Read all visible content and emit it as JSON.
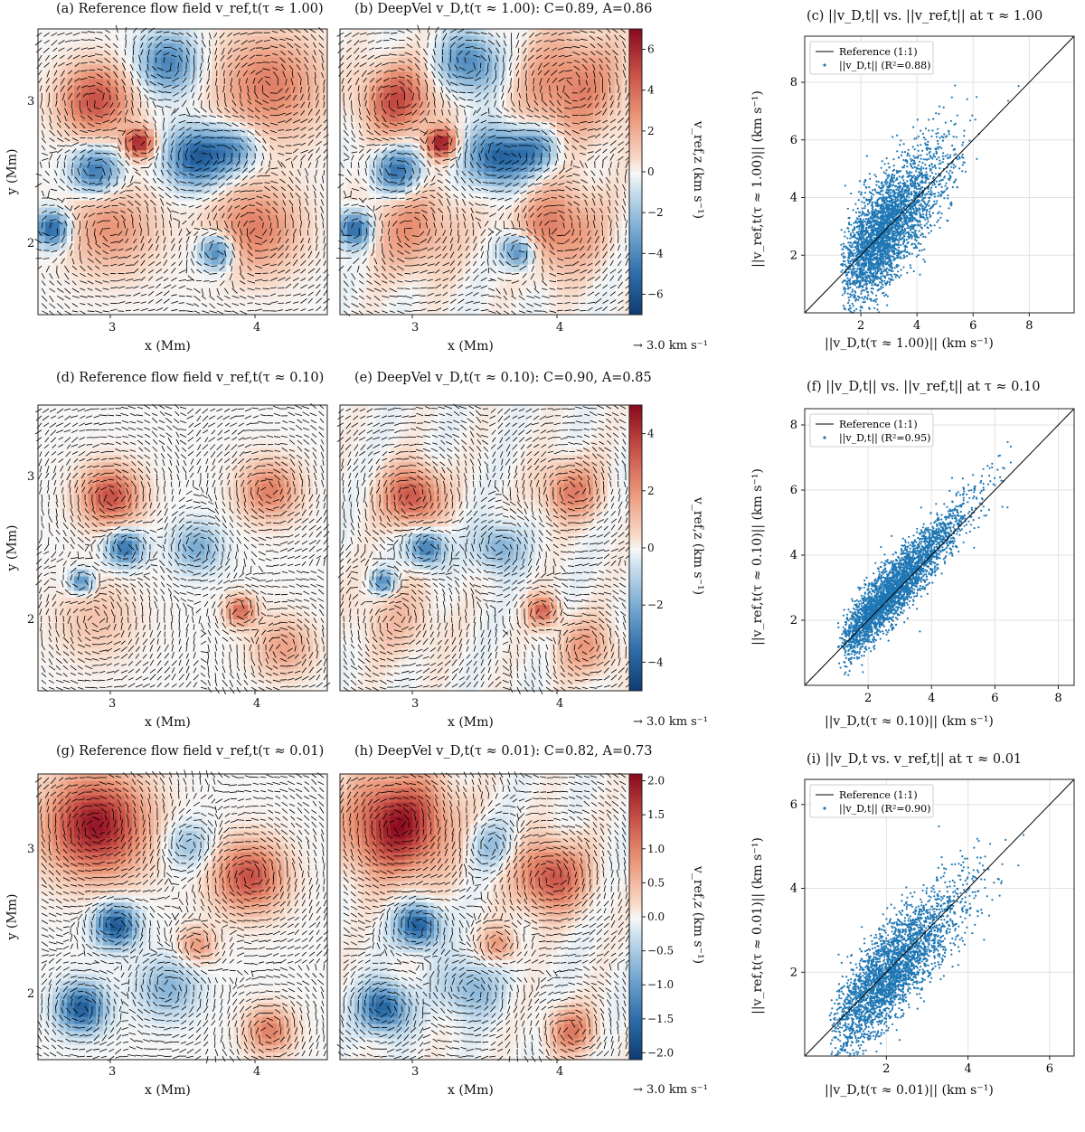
{
  "panels_top": {
    "a_title": "(a) Reference flow field v_ref,t(τ ≈ 1.00)",
    "b_title": "(b) DeepVel v_D,t(τ ≈ 1.00): C=0.89, A=0.86",
    "c_title": "(c) ||v_D,t|| vs. ||v_ref,t|| at τ ≈ 1.00"
  },
  "panels_mid": {
    "d_title": "(d) Reference flow field v_ref,t(τ ≈ 0.10)",
    "e_title": "(e) DeepVel v_D,t(τ ≈ 0.10): C=0.90, A=0.85",
    "f_title": "(f) ||v_D,t|| vs. ||v_ref,t|| at τ ≈ 0.10"
  },
  "panels_bot": {
    "g_title": "(g) Reference flow field v_ref,t(τ ≈ 0.01)",
    "h_title": "(h) DeepVel v_D,t(τ ≈ 0.01): C=0.82, A=0.73",
    "i_title": "(i) ||v_D,t vs. v_ref,t|| at τ ≈ 0.01"
  },
  "map_axes": {
    "xlabel": "x (Mm)",
    "ylabel": "y (Mm)",
    "x_ticks": [
      "3",
      "4"
    ],
    "y_ticks": [
      "3",
      "2"
    ],
    "arrow_key": "→ 3.0 km s⁻¹",
    "colorbar_label": "v_ref,z (km s⁻¹)"
  },
  "colorbars": {
    "top_ticks": [
      "6",
      "4",
      "2",
      "0",
      "−2",
      "−4",
      "−6"
    ],
    "mid_ticks": [
      "4",
      "2",
      "0",
      "−2",
      "−4"
    ],
    "bot_ticks": [
      "2.0",
      "1.5",
      "1.0",
      "0.5",
      "0.0",
      "−0.5",
      "−1.0",
      "−1.5",
      "−2.0"
    ],
    "colors": {
      "pos": "#8b0a1e",
      "zero": "#f7f7f7",
      "neg": "#0d3a6e"
    }
  },
  "scatter_axes": {
    "c_xlabel": "||v_D,t(τ ≈ 1.00)|| (km s⁻¹)",
    "c_ylabel": "||v_ref,t(τ ≈ 1.00)|| (km s⁻¹)",
    "f_xlabel": "||v_D,t(τ ≈ 0.10)|| (km s⁻¹)",
    "f_ylabel": "||v_ref,t(τ ≈ 0.10)|| (km s⁻¹)",
    "i_xlabel": "||v_D,t(τ ≈ 0.01)|| (km s⁻¹)",
    "i_ylabel": "||v_ref,t(τ ≈ 0.01)|| (km s⁻¹)",
    "legend_ref": "Reference (1:1)",
    "c_legend": "||v_D,t|| (R²=0.88)",
    "f_legend": "||v_D,t|| (R²=0.95)",
    "i_legend": "||v_D,t|| (R²=0.90)",
    "point_color": "#1f77b4"
  },
  "chart_data": [
    {
      "type": "scatter",
      "panel": "c",
      "xlim": [
        0,
        9.6
      ],
      "ylim": [
        0,
        9.6
      ],
      "x_ticks": [
        2,
        4,
        6,
        8
      ],
      "y_ticks": [
        2,
        4,
        6,
        8
      ],
      "grid": true,
      "legend": "top-left",
      "r2": 0.88,
      "reference_line": "1:1"
    },
    {
      "type": "scatter",
      "panel": "f",
      "xlim": [
        0,
        8.5
      ],
      "ylim": [
        0,
        8.5
      ],
      "x_ticks": [
        2,
        4,
        6,
        8
      ],
      "y_ticks": [
        2,
        4,
        6,
        8
      ],
      "grid": true,
      "legend": "top-left",
      "r2": 0.95,
      "reference_line": "1:1"
    },
    {
      "type": "scatter",
      "panel": "i",
      "xlim": [
        0,
        6.6
      ],
      "ylim": [
        0,
        6.6
      ],
      "x_ticks": [
        2,
        4,
        6
      ],
      "y_ticks": [
        2,
        4,
        6
      ],
      "grid": true,
      "legend": "top-left",
      "r2": 0.9,
      "reference_line": "1:1"
    },
    {
      "type": "heatmap",
      "panel": "a-b",
      "colorbar_range": [
        -7,
        7
      ],
      "x_range_Mm": [
        2.5,
        4.5
      ],
      "y_range_Mm": [
        1.5,
        3.5
      ]
    },
    {
      "type": "heatmap",
      "panel": "d-e",
      "colorbar_range": [
        -5,
        5
      ],
      "x_range_Mm": [
        2.5,
        4.5
      ],
      "y_range_Mm": [
        1.5,
        3.5
      ]
    },
    {
      "type": "heatmap",
      "panel": "g-h",
      "colorbar_range": [
        -2,
        2
      ],
      "x_range_Mm": [
        2.5,
        4.5
      ],
      "y_range_Mm": [
        1.5,
        3.5
      ]
    }
  ]
}
